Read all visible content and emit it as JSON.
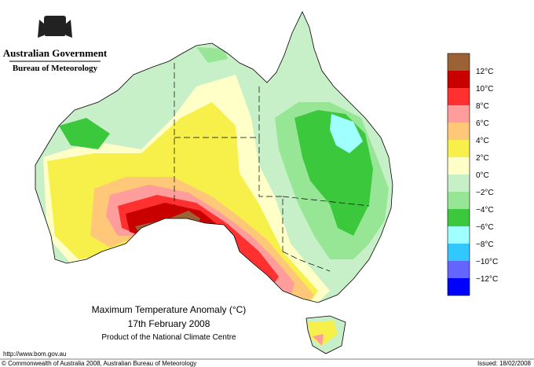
{
  "header": {
    "agency": "Australian Government",
    "bureau": "Bureau of Meteorology"
  },
  "map": {
    "title": "Maximum Temperature Anomaly (°C)",
    "date": "17th February 2008",
    "product": "Product of the National Climate Centre"
  },
  "legend": {
    "colors": [
      "#9c6236",
      "#c80000",
      "#ff3030",
      "#ff9c9c",
      "#ffc878",
      "#f8f04a",
      "#ffffc8",
      "#c8f0c8",
      "#96e696",
      "#3cc83c",
      "#a0ffff",
      "#30c8ff",
      "#6464ff",
      "#0000ff"
    ],
    "labels": [
      "12°C",
      "10°C",
      "8°C",
      "6°C",
      "4°C",
      "2°C",
      "0°C",
      "−2°C",
      "−4°C",
      "−6°C",
      "−8°C",
      "−10°C",
      "−12°C"
    ]
  },
  "footer": {
    "url": "http://www.bom.gov.au",
    "copyright": "© Commonwealth of Australia 2008, Australian Bureau of Meteorology",
    "issued": "Issued: 18/02/2008"
  }
}
